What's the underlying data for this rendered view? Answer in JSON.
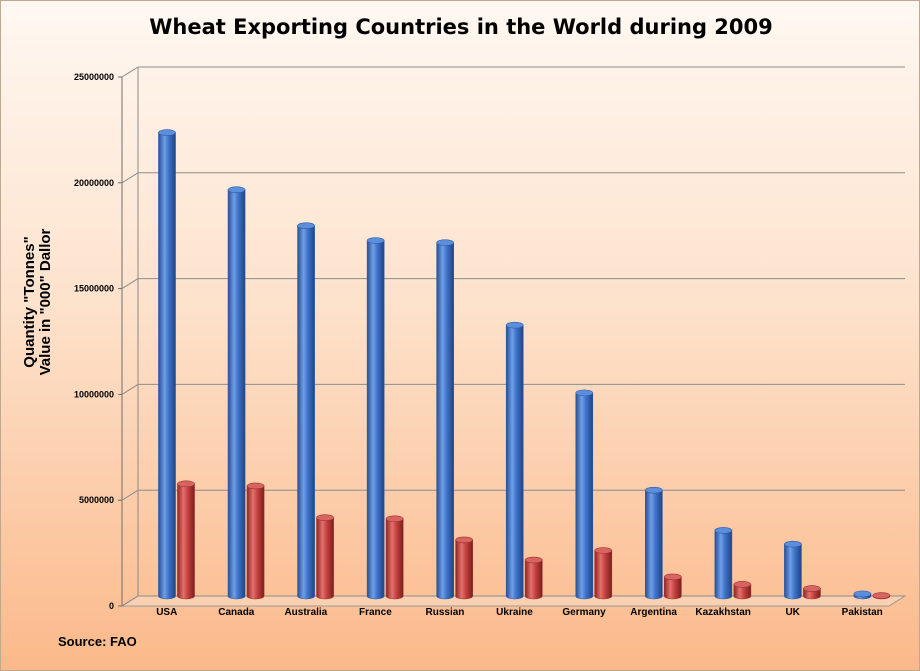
{
  "chart_data": {
    "type": "bar",
    "title": "Wheat Exporting Countries in the World during 2009",
    "ylabel_line1": "Quantity \"Tonnes\"",
    "ylabel_line2": "Value in \"000\" Dallor",
    "source": "Source: FAO",
    "categories": [
      "USA",
      "Canada",
      "Australia",
      "France",
      "Russian",
      "Ukraine",
      "Germany",
      "Argentina",
      "Kazakhstan",
      "UK",
      "Pakistan"
    ],
    "series": [
      {
        "values": [
          21900000,
          19200000,
          17500000,
          16800000,
          16700000,
          12800000,
          9600000,
          5000000,
          3100000,
          2450000,
          100000
        ],
        "color": "#3a6cc0"
      },
      {
        "values": [
          5300000,
          5200000,
          3700000,
          3650000,
          2650000,
          1700000,
          2150000,
          900000,
          550000,
          350000,
          20000
        ],
        "color": "#c0413e"
      }
    ],
    "ylim": [
      0,
      25000000
    ],
    "yticks": [
      "0",
      "5000000",
      "10000000",
      "15000000",
      "20000000",
      "25000000"
    ],
    "grid": true,
    "legend": "none"
  }
}
